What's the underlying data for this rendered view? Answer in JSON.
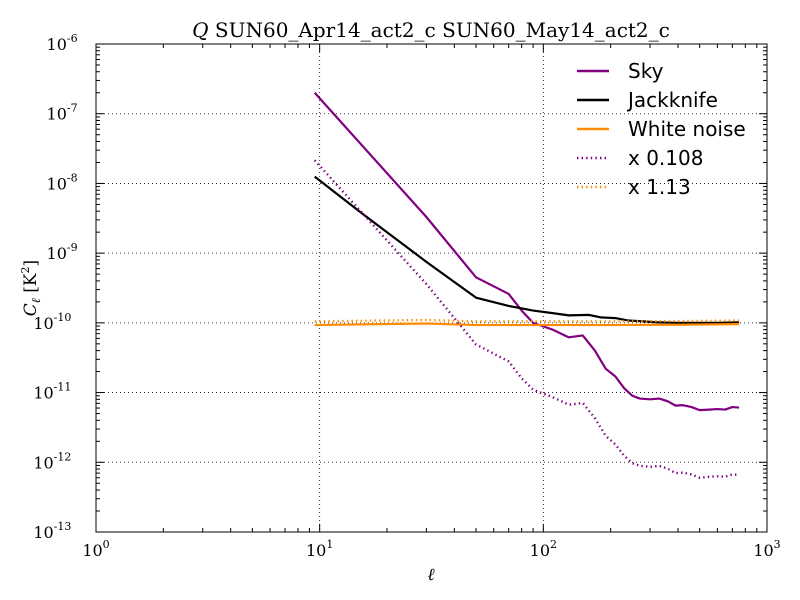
{
  "chart_data": {
    "type": "line",
    "title": "Q SUN60_Apr14_act2_c SUN60_May14_act2_c",
    "title_italic_prefix": "Q",
    "title_rest": "SUN60_Apr14_act2_c SUN60_May14_act2_c",
    "xlabel": "ℓ",
    "ylabel_base": "C",
    "ylabel_sub": "ℓ",
    "ylabel_unit_base": " [K",
    "ylabel_unit_exp": "2",
    "ylabel_unit_close": "]",
    "xscale": "log",
    "yscale": "log",
    "xlim": [
      1,
      1000
    ],
    "ylim": [
      1e-13,
      1e-06
    ],
    "grid": true,
    "legend_position": "top-right",
    "x_ticks": [
      {
        "base": "10",
        "exp": "0",
        "value": 1
      },
      {
        "base": "10",
        "exp": "1",
        "value": 10
      },
      {
        "base": "10",
        "exp": "2",
        "value": 100
      },
      {
        "base": "10",
        "exp": "3",
        "value": 1000
      }
    ],
    "y_ticks": [
      {
        "base": "10",
        "exp": "-13",
        "value": 1e-13
      },
      {
        "base": "10",
        "exp": "-12",
        "value": 1e-12
      },
      {
        "base": "10",
        "exp": "-11",
        "value": 1e-11
      },
      {
        "base": "10",
        "exp": "-10",
        "value": 1e-10
      },
      {
        "base": "10",
        "exp": "-9",
        "value": 1e-09
      },
      {
        "base": "10",
        "exp": "-8",
        "value": 1e-08
      },
      {
        "base": "10",
        "exp": "-7",
        "value": 1e-07
      },
      {
        "base": "10",
        "exp": "-6",
        "value": 1e-06
      }
    ],
    "series": [
      {
        "name": "Sky",
        "color": "#800080",
        "style": "solid",
        "points": [
          [
            9.5,
            2e-07
          ],
          [
            30,
            3.3e-09
          ],
          [
            50,
            4.5e-10
          ],
          [
            70,
            2.6e-10
          ],
          [
            80,
            1.5e-10
          ],
          [
            90,
            1e-10
          ],
          [
            110,
            8e-11
          ],
          [
            130,
            6.2e-11
          ],
          [
            150,
            6.6e-11
          ],
          [
            170,
            4e-11
          ],
          [
            190,
            2.2e-11
          ],
          [
            210,
            1.7e-11
          ],
          [
            230,
            1.15e-11
          ],
          [
            250,
            9e-12
          ],
          [
            270,
            8.2e-12
          ],
          [
            300,
            8e-12
          ],
          [
            330,
            8.2e-12
          ],
          [
            360,
            7.5e-12
          ],
          [
            390,
            6.5e-12
          ],
          [
            420,
            6.6e-12
          ],
          [
            460,
            6.2e-12
          ],
          [
            500,
            5.6e-12
          ],
          [
            550,
            5.7e-12
          ],
          [
            600,
            5.8e-12
          ],
          [
            650,
            5.7e-12
          ],
          [
            700,
            6.2e-12
          ],
          [
            750,
            6.1e-12
          ]
        ]
      },
      {
        "name": "Jackknife",
        "color": "#000000",
        "style": "solid",
        "points": [
          [
            9.5,
            1.25e-08
          ],
          [
            15,
            4e-09
          ],
          [
            30,
            7.5e-10
          ],
          [
            50,
            2.3e-10
          ],
          [
            70,
            1.75e-10
          ],
          [
            90,
            1.5e-10
          ],
          [
            110,
            1.38e-10
          ],
          [
            130,
            1.28e-10
          ],
          [
            160,
            1.3e-10
          ],
          [
            180,
            1.2e-10
          ],
          [
            210,
            1.17e-10
          ],
          [
            240,
            1.08e-10
          ],
          [
            280,
            1.05e-10
          ],
          [
            320,
            1.02e-10
          ],
          [
            400,
            1e-10
          ],
          [
            500,
            1e-10
          ],
          [
            600,
            1e-10
          ],
          [
            750,
            1.02e-10
          ]
        ]
      },
      {
        "name": "White noise",
        "color": "#FF8C00",
        "style": "solid",
        "points": [
          [
            9.5,
            9.3e-11
          ],
          [
            15,
            9.5e-11
          ],
          [
            30,
            9.8e-11
          ],
          [
            50,
            9.3e-11
          ],
          [
            100,
            9.3e-11
          ],
          [
            200,
            9.3e-11
          ],
          [
            400,
            9.4e-11
          ],
          [
            750,
            9.6e-11
          ]
        ]
      },
      {
        "name": "x 0.108",
        "color": "#800080",
        "style": "dotted",
        "points": [
          [
            9.5,
            2.15e-08
          ],
          [
            30,
            3.6e-10
          ],
          [
            50,
            4.9e-11
          ],
          [
            70,
            2.8e-11
          ],
          [
            80,
            1.6e-11
          ],
          [
            90,
            1.1e-11
          ],
          [
            110,
            8.6e-12
          ],
          [
            130,
            6.7e-12
          ],
          [
            150,
            7.1e-12
          ],
          [
            170,
            4.3e-12
          ],
          [
            190,
            2.4e-12
          ],
          [
            210,
            1.8e-12
          ],
          [
            230,
            1.24e-12
          ],
          [
            250,
            9.7e-13
          ],
          [
            270,
            8.9e-13
          ],
          [
            300,
            8.6e-13
          ],
          [
            330,
            8.9e-13
          ],
          [
            360,
            8.1e-13
          ],
          [
            390,
            7e-13
          ],
          [
            420,
            7.1e-13
          ],
          [
            460,
            6.7e-13
          ],
          [
            500,
            6e-13
          ],
          [
            550,
            6.2e-13
          ],
          [
            600,
            6.3e-13
          ],
          [
            650,
            6.2e-13
          ],
          [
            700,
            6.7e-13
          ],
          [
            750,
            6.6e-13
          ]
        ]
      },
      {
        "name": "x 1.13",
        "color": "#FF8C00",
        "style": "dotted",
        "points": [
          [
            9.5,
            1.05e-10
          ],
          [
            15,
            1.07e-10
          ],
          [
            30,
            1.1e-10
          ],
          [
            50,
            1.05e-10
          ],
          [
            100,
            1.05e-10
          ],
          [
            200,
            1.05e-10
          ],
          [
            400,
            1.06e-10
          ],
          [
            750,
            1.08e-10
          ]
        ]
      }
    ]
  }
}
